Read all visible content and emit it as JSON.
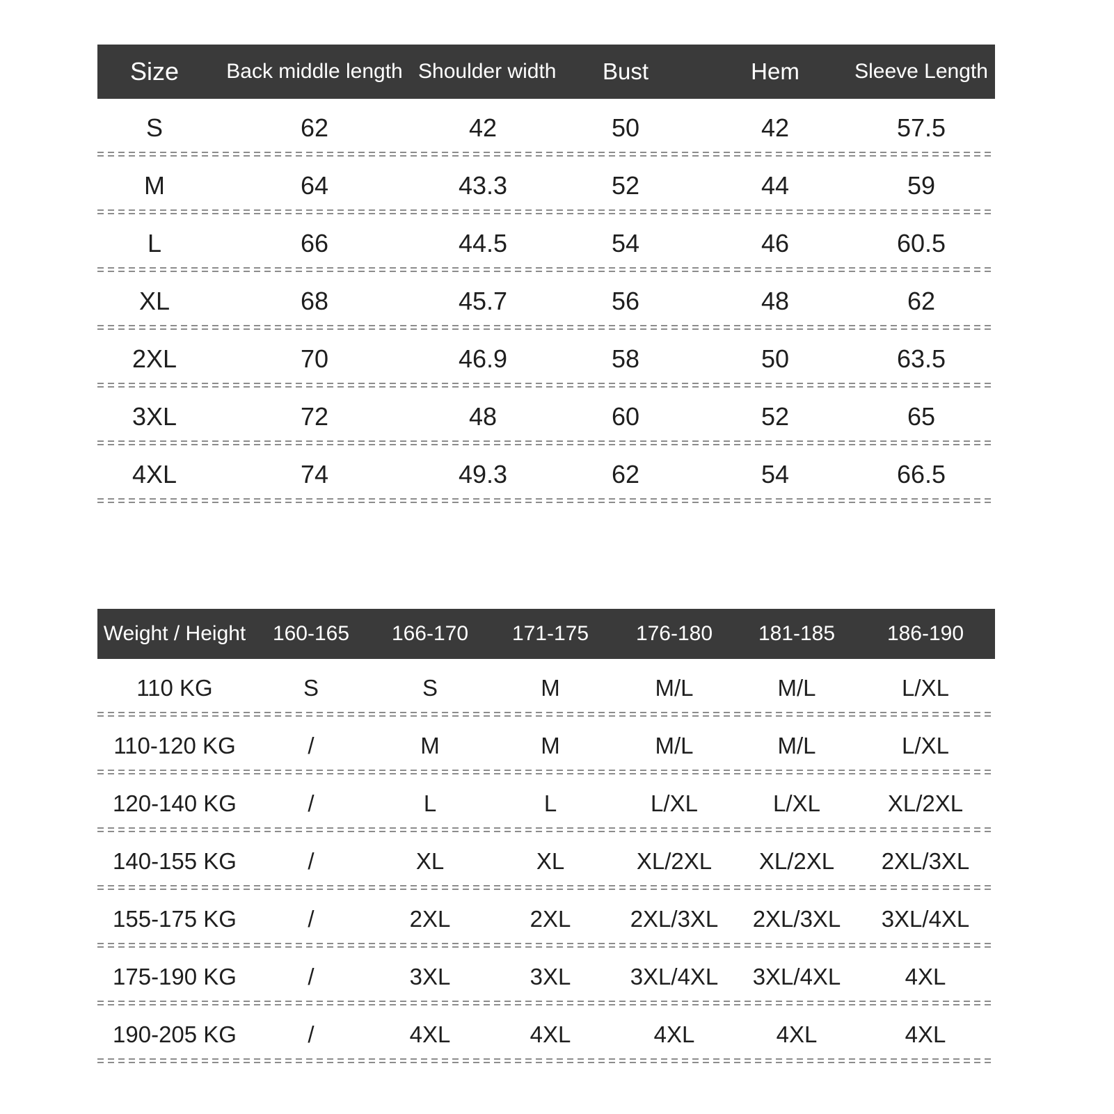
{
  "colors": {
    "header_bg": "#3a3a3a",
    "header_text": "#ffffff",
    "body_text": "#1e1e1e",
    "separator": "#8c8c8c"
  },
  "size_table": {
    "headers": [
      "Size",
      "Back middle length",
      "Shoulder width",
      "Bust",
      "Hem",
      "Sleeve Length"
    ],
    "rows": [
      [
        "S",
        "62",
        "42",
        "50",
        "42",
        "57.5"
      ],
      [
        "M",
        "64",
        "43.3",
        "52",
        "44",
        "59"
      ],
      [
        "L",
        "66",
        "44.5",
        "54",
        "46",
        "60.5"
      ],
      [
        "XL",
        "68",
        "45.7",
        "56",
        "48",
        "62"
      ],
      [
        "2XL",
        "70",
        "46.9",
        "58",
        "50",
        "63.5"
      ],
      [
        "3XL",
        "72",
        "48",
        "60",
        "52",
        "65"
      ],
      [
        "4XL",
        "74",
        "49.3",
        "62",
        "54",
        "66.5"
      ]
    ]
  },
  "fit_table": {
    "headers": [
      "Weight / Height",
      "160-165",
      "166-170",
      "171-175",
      "176-180",
      "181-185",
      "186-190"
    ],
    "rows": [
      [
        "110 KG",
        "S",
        "S",
        "M",
        "M/L",
        "M/L",
        "L/XL"
      ],
      [
        "110-120 KG",
        "/",
        "M",
        "M",
        "M/L",
        "M/L",
        "L/XL"
      ],
      [
        "120-140 KG",
        "/",
        "L",
        "L",
        "L/XL",
        "L/XL",
        "XL/2XL"
      ],
      [
        "140-155 KG",
        "/",
        "XL",
        "XL",
        "XL/2XL",
        "XL/2XL",
        "2XL/3XL"
      ],
      [
        "155-175 KG",
        "/",
        "2XL",
        "2XL",
        "2XL/3XL",
        "2XL/3XL",
        "3XL/4XL"
      ],
      [
        "175-190 KG",
        "/",
        "3XL",
        "3XL",
        "3XL/4XL",
        "3XL/4XL",
        "4XL"
      ],
      [
        "190-205 KG",
        "/",
        "4XL",
        "4XL",
        "4XL",
        "4XL",
        "4XL"
      ]
    ]
  }
}
